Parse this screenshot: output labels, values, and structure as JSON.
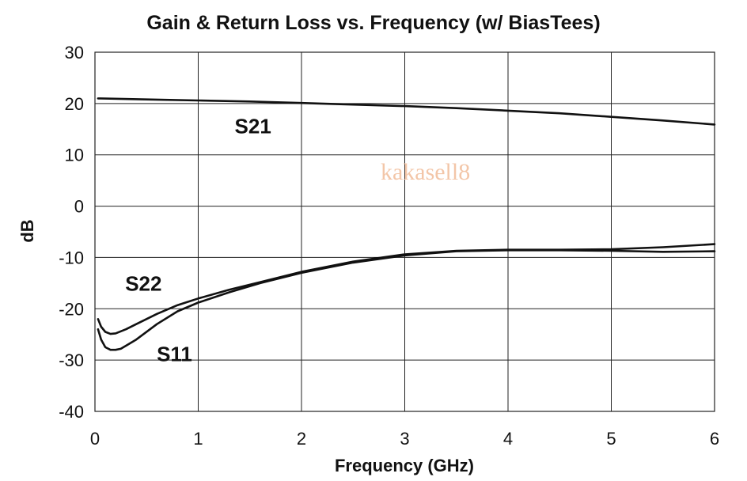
{
  "chart_data": {
    "type": "line",
    "title": "Gain & Return Loss vs. Frequency (w/ BiasTees)",
    "xlabel": "Frequency (GHz)",
    "ylabel": "dB",
    "xlim": [
      0,
      6
    ],
    "ylim": [
      -40,
      30
    ],
    "xticks": [
      0,
      1,
      2,
      3,
      4,
      5,
      6
    ],
    "yticks": [
      30,
      20,
      10,
      0,
      -10,
      -20,
      -30,
      -40
    ],
    "grid": true,
    "watermark": "kakasell8",
    "series": [
      {
        "name": "S21",
        "x": [
          0.03,
          0.5,
          1.0,
          1.5,
          2.0,
          2.5,
          3.0,
          3.5,
          4.0,
          4.5,
          5.0,
          5.5,
          6.0
        ],
        "y": [
          21.0,
          20.8,
          20.6,
          20.4,
          20.1,
          19.8,
          19.5,
          19.1,
          18.6,
          18.1,
          17.4,
          16.7,
          15.9
        ]
      },
      {
        "name": "S22",
        "x": [
          0.03,
          0.06,
          0.1,
          0.15,
          0.2,
          0.3,
          0.4,
          0.6,
          0.8,
          1.0,
          1.3,
          1.6,
          2.0,
          2.5,
          3.0,
          3.5,
          4.0,
          4.5,
          5.0,
          5.5,
          6.0
        ],
        "y": [
          -22.0,
          -23.5,
          -24.5,
          -24.9,
          -24.8,
          -24.0,
          -23.0,
          -21.0,
          -19.3,
          -18.0,
          -16.3,
          -14.8,
          -12.8,
          -10.8,
          -9.4,
          -8.7,
          -8.5,
          -8.5,
          -8.4,
          -8.0,
          -7.4
        ]
      },
      {
        "name": "S11",
        "x": [
          0.03,
          0.06,
          0.1,
          0.15,
          0.2,
          0.25,
          0.3,
          0.4,
          0.6,
          0.8,
          1.0,
          1.3,
          1.6,
          2.0,
          2.5,
          3.0,
          3.5,
          4.0,
          4.5,
          5.0,
          5.5,
          6.0
        ],
        "y": [
          -24.0,
          -26.0,
          -27.5,
          -28.0,
          -28.0,
          -27.8,
          -27.2,
          -26.0,
          -23.0,
          -20.5,
          -18.8,
          -16.8,
          -15.0,
          -13.0,
          -11.0,
          -9.6,
          -8.8,
          -8.6,
          -8.6,
          -8.7,
          -8.9,
          -8.8
        ]
      }
    ],
    "series_labels": [
      {
        "text": "S21",
        "x": 1.53,
        "y": 14.2
      },
      {
        "text": "S22",
        "x": 0.47,
        "y": -16.5
      },
      {
        "text": "S11",
        "x": 0.77,
        "y": -30.2
      }
    ],
    "watermark_pos": {
      "x": 3.2,
      "y": 5.2
    }
  }
}
